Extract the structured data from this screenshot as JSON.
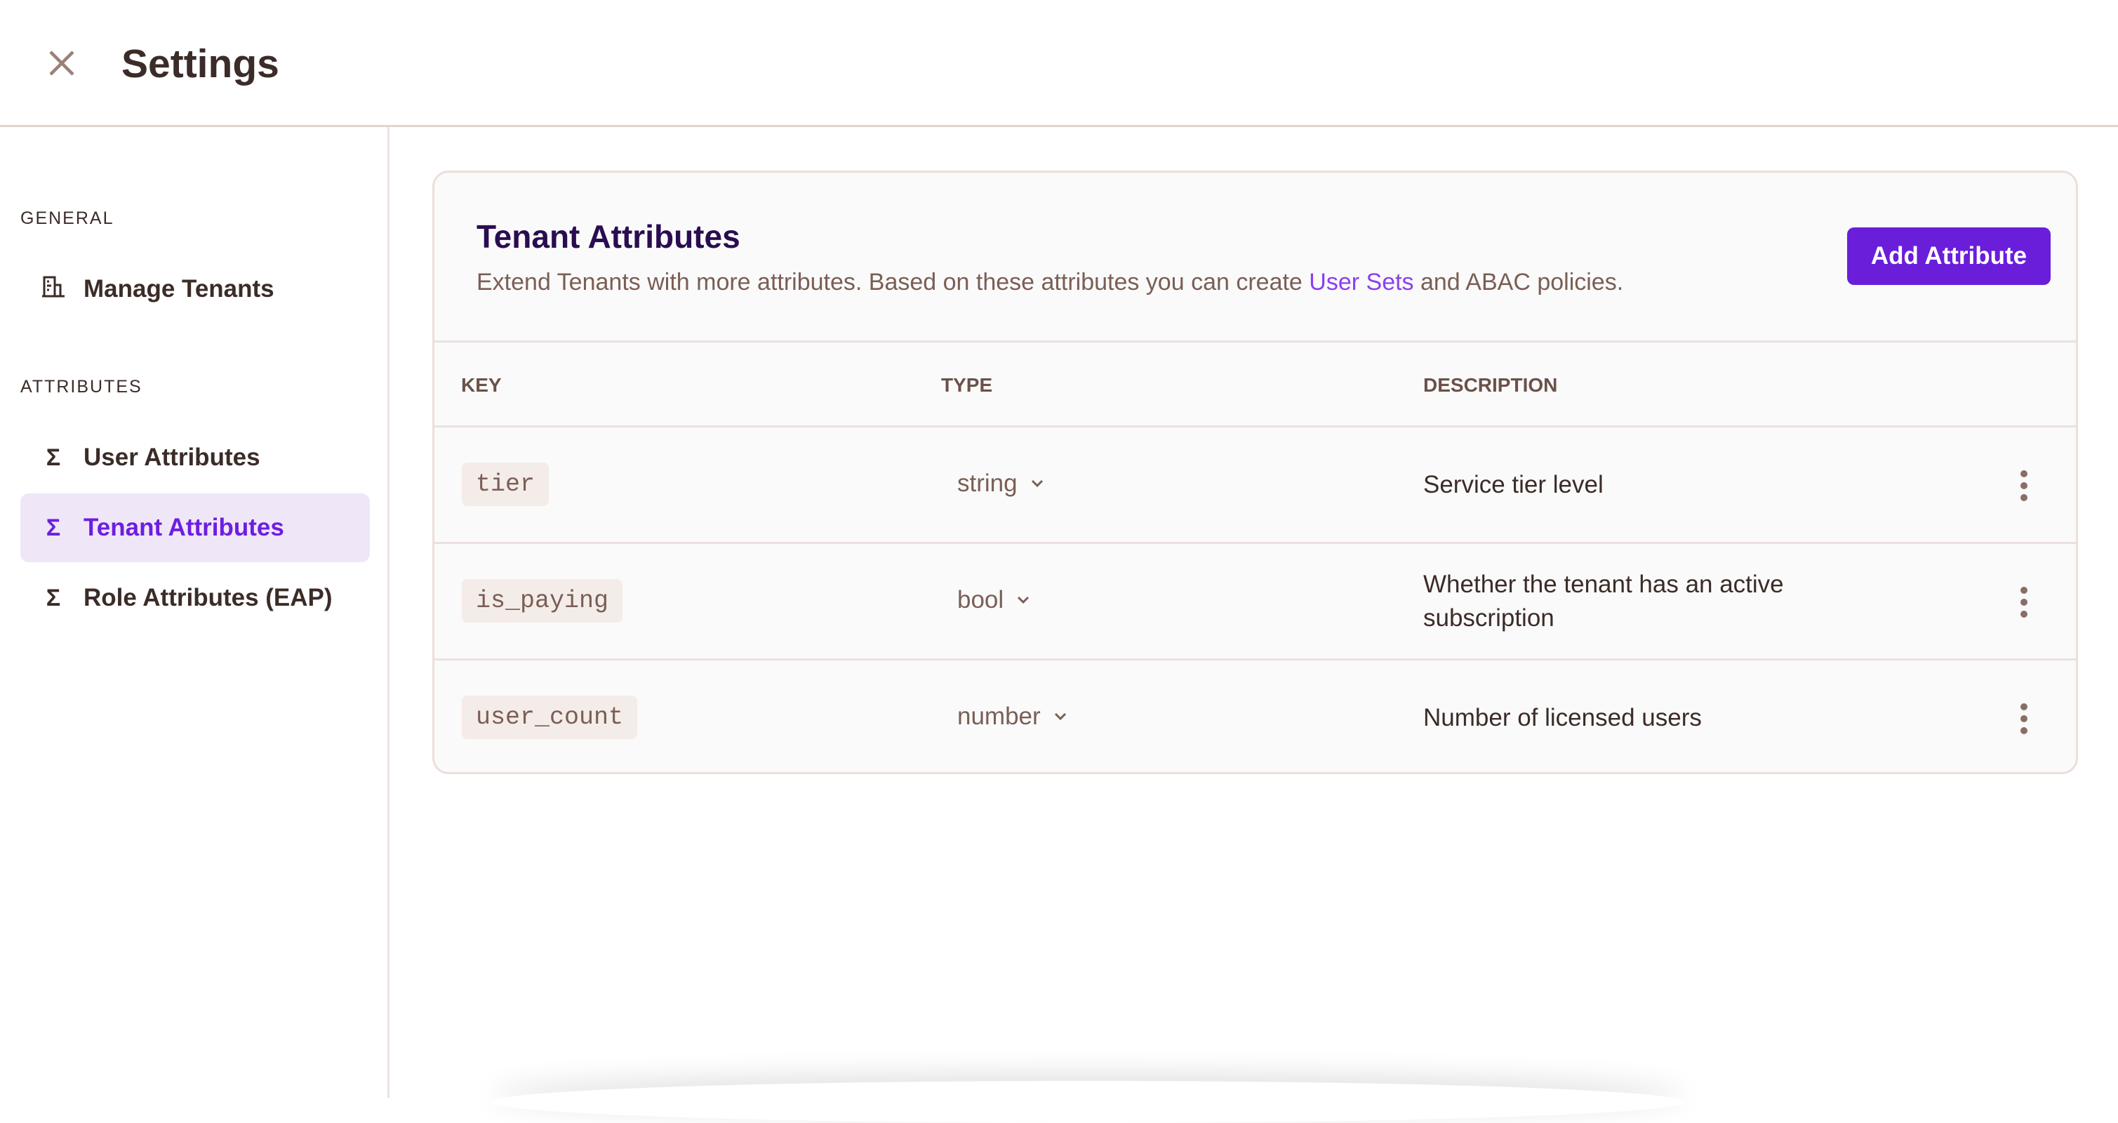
{
  "header": {
    "title": "Settings",
    "close_icon": "close-icon"
  },
  "sidebar": {
    "sections": [
      {
        "label": "GENERAL",
        "items": [
          {
            "label": "Manage Tenants",
            "icon": "building-icon"
          }
        ]
      },
      {
        "label": "ATTRIBUTES",
        "items": [
          {
            "label": "User Attributes",
            "icon": "sigma-icon"
          },
          {
            "label": "Tenant Attributes",
            "icon": "sigma-icon",
            "active": true
          },
          {
            "label": "Role Attributes (EAP)",
            "icon": "sigma-icon"
          }
        ]
      }
    ]
  },
  "card": {
    "title": "Tenant Attributes",
    "description_before": "Extend Tenants with more attributes. Based on these attributes you can create ",
    "description_link": "User Sets",
    "description_after": " and ABAC policies.",
    "add_button": "Add Attribute",
    "columns": [
      "KEY",
      "TYPE",
      "DESCRIPTION"
    ],
    "rows": [
      {
        "key": "tier",
        "type": "string",
        "description": "Service tier level"
      },
      {
        "key": "is_paying",
        "type": "bool",
        "description": "Whether the tenant has an active subscription"
      },
      {
        "key": "user_count",
        "type": "number",
        "description": "Number of licensed users"
      }
    ]
  },
  "colors": {
    "accent": "#6a1ed9",
    "active_bg": "#efe6f8",
    "title": "#2a0d50",
    "muted": "#7a5e55"
  }
}
